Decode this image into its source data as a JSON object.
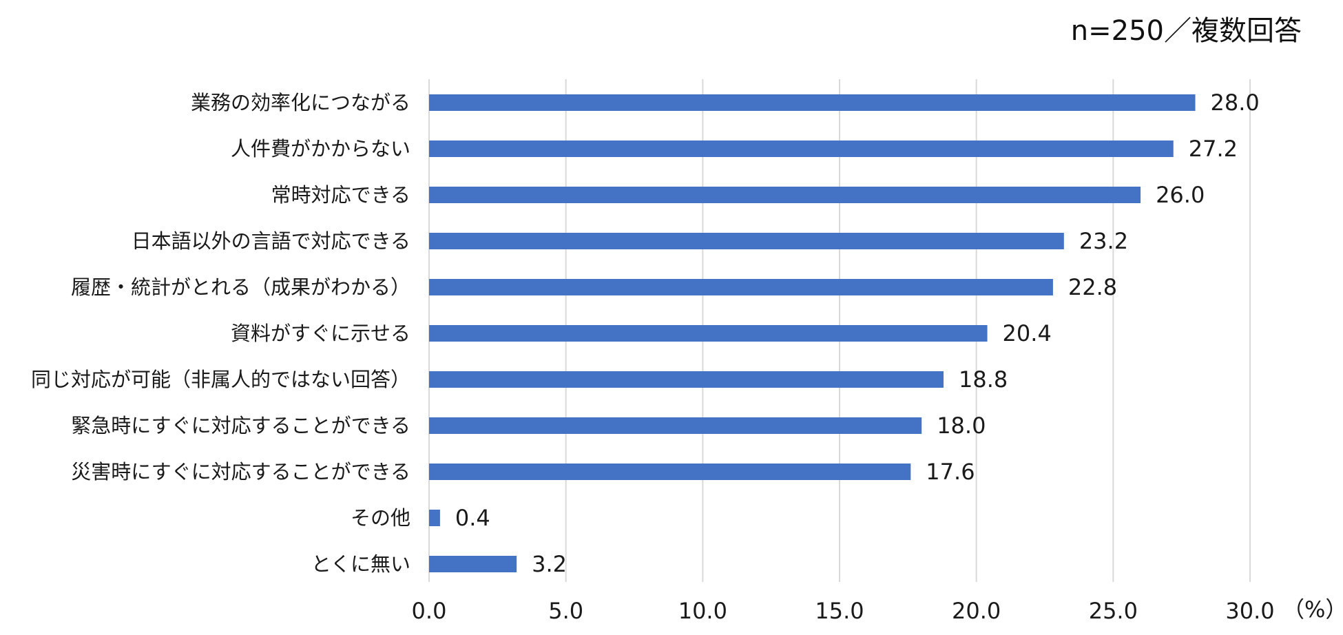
{
  "chart_data": {
    "type": "bar",
    "orientation": "horizontal",
    "note": "n=250／複数回答",
    "x_unit": "（%）",
    "categories": [
      "業務の効率化につながる",
      "人件費がかからない",
      "常時対応できる",
      "日本語以外の言語で対応できる",
      "履歴・統計がとれる（成果がわかる）",
      "資料がすぐに示せる",
      "同じ対応が可能（非属人的ではない回答）",
      "緊急時にすぐに対応することができる",
      "災害時にすぐに対応することができる",
      "その他",
      "とくに無い"
    ],
    "values": [
      28.0,
      27.2,
      26.0,
      23.2,
      22.8,
      20.4,
      18.8,
      18.0,
      17.6,
      0.4,
      3.2
    ],
    "value_labels": [
      "28.0",
      "27.2",
      "26.0",
      "23.2",
      "22.8",
      "20.4",
      "18.8",
      "18.0",
      "17.6",
      "0.4",
      "3.2"
    ],
    "x_ticks": [
      "0.0",
      "5.0",
      "10.0",
      "15.0",
      "20.0",
      "25.0",
      "30.0"
    ],
    "xlim": [
      0,
      30
    ],
    "grid": true,
    "bar_color": "#4472C4",
    "grid_color": "#d9d9d9"
  }
}
